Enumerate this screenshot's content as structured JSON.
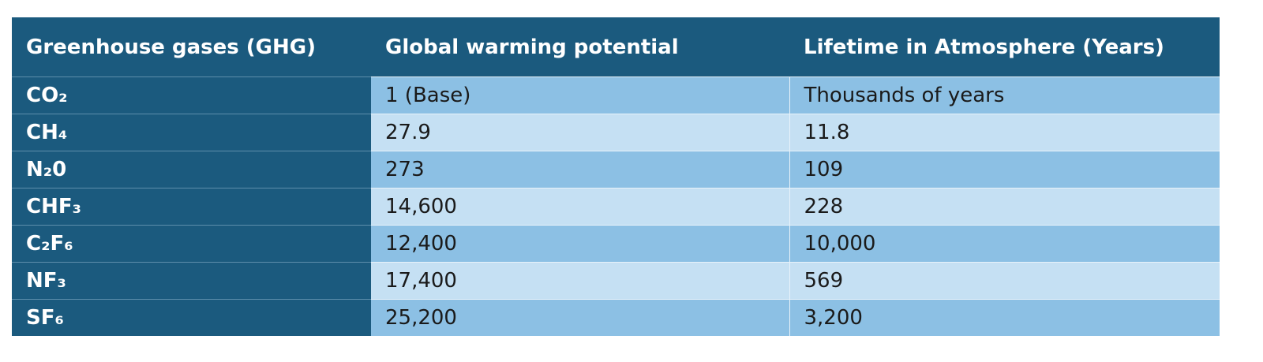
{
  "table": {
    "header": [
      "Greenhouse gases (GHG)",
      "Global warming potential",
      "Lifetime in Atmosphere (Years)"
    ],
    "rows": [
      [
        "CO₂",
        "1 (Base)",
        "Thousands of years"
      ],
      [
        "CH₄",
        "27.9",
        "11.8"
      ],
      [
        "N₂0",
        "273",
        "109"
      ],
      [
        "CHF₃",
        "14,600",
        "228"
      ],
      [
        "C₂F₆",
        "12,400",
        "10,000"
      ],
      [
        "NF₃",
        "17,400",
        "569"
      ],
      [
        "SF₆",
        "25,200",
        "3,200"
      ]
    ]
  }
}
